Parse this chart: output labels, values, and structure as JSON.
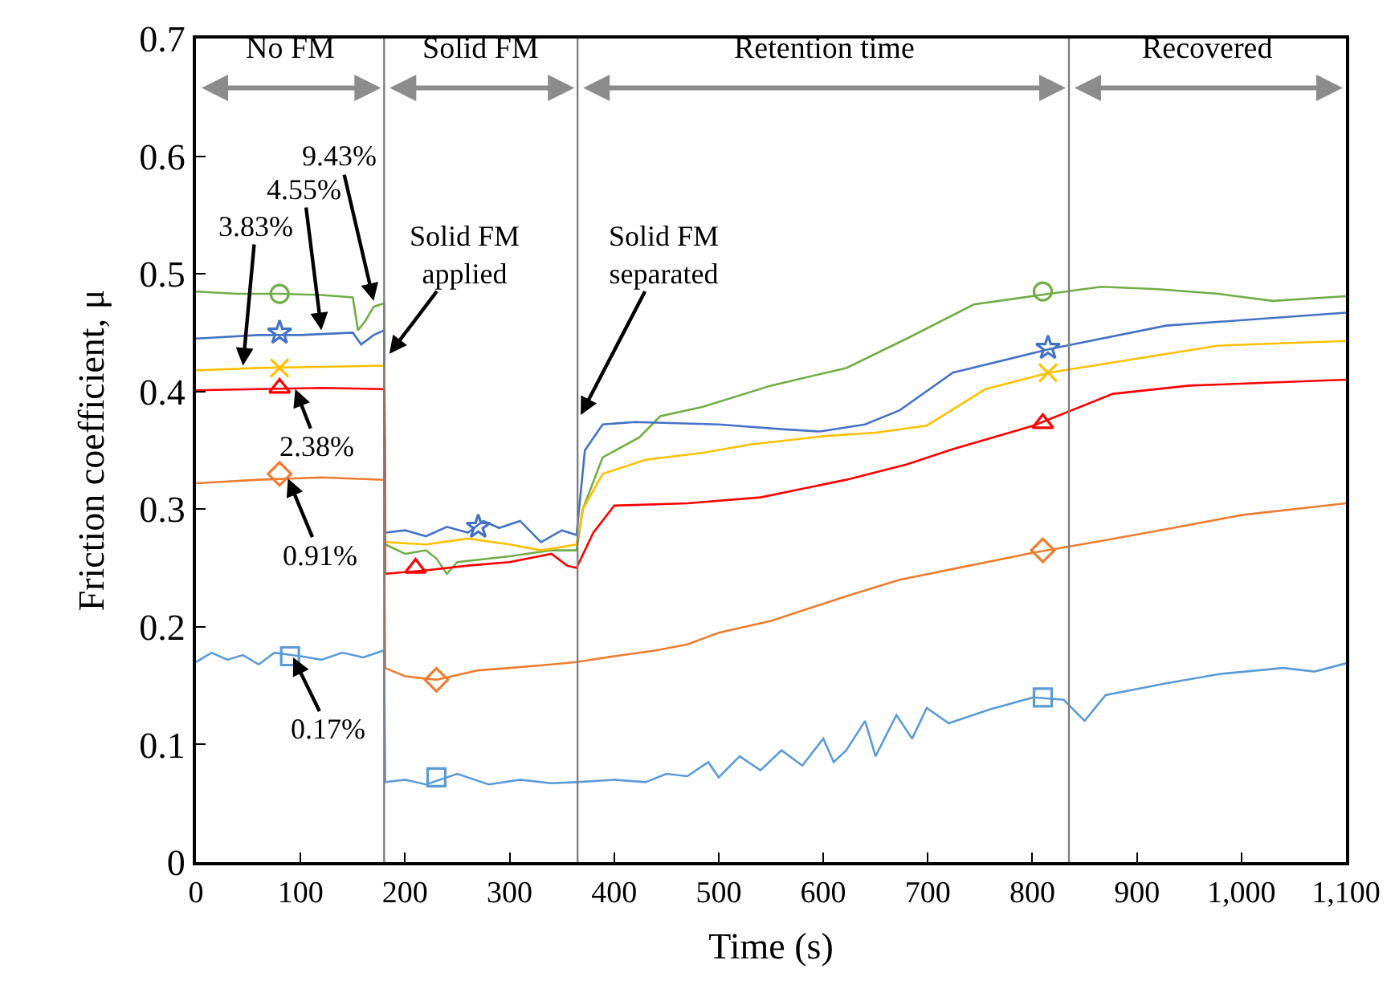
{
  "chart_data": {
    "type": "line",
    "xlabel": "Time (s)",
    "ylabel": "Friction coefficient, μ",
    "xlim": [
      0,
      1100
    ],
    "ylim": [
      0,
      0.7
    ],
    "xticks": [
      0,
      100,
      200,
      300,
      400,
      500,
      600,
      700,
      800,
      900,
      {
        "value": 1000,
        "label": "1,000"
      },
      {
        "value": 1100,
        "label": "1,100"
      }
    ],
    "yticks": [
      0,
      0.1,
      0.2,
      0.3,
      0.4,
      0.5,
      0.6,
      0.7
    ],
    "series": [
      {
        "color": "#70ad47",
        "x": [
          0,
          40,
          80,
          120,
          150,
          155,
          162,
          170,
          180,
          181,
          200,
          220,
          230,
          240,
          250,
          300,
          340,
          364,
          370,
          389,
          424,
          444,
          485,
          550,
          622,
          680,
          744,
          816,
          866,
          920,
          978,
          1030,
          1100
        ],
        "values": [
          0.485,
          0.483,
          0.483,
          0.482,
          0.48,
          0.452,
          0.46,
          0.472,
          0.475,
          0.27,
          0.262,
          0.265,
          0.258,
          0.245,
          0.255,
          0.26,
          0.265,
          0.265,
          0.3,
          0.344,
          0.361,
          0.379,
          0.387,
          0.405,
          0.42,
          0.445,
          0.474,
          0.483,
          0.489,
          0.487,
          0.483,
          0.477,
          0.481
        ]
      },
      {
        "color": "#4472c4",
        "x": [
          0,
          60,
          100,
          150,
          158,
          170,
          180,
          181,
          200,
          220,
          240,
          260,
          275,
          290,
          310,
          330,
          350,
          364,
          372,
          389,
          420,
          500,
          560,
          597,
          640,
          673,
          724,
          816,
          928,
          1100
        ],
        "values": [
          0.445,
          0.448,
          0.448,
          0.45,
          0.44,
          0.448,
          0.452,
          0.28,
          0.282,
          0.277,
          0.285,
          0.28,
          0.29,
          0.284,
          0.29,
          0.272,
          0.282,
          0.278,
          0.35,
          0.372,
          0.374,
          0.372,
          0.368,
          0.366,
          0.372,
          0.384,
          0.416,
          0.436,
          0.456,
          0.467
        ]
      },
      {
        "color": "#ffc000",
        "x": [
          0,
          60,
          120,
          180,
          181,
          220,
          260,
          300,
          330,
          364,
          370,
          389,
          430,
          485,
          530,
          600,
          650,
          699,
          755,
          816,
          900,
          978,
          1100
        ],
        "values": [
          0.418,
          0.42,
          0.421,
          0.422,
          0.272,
          0.27,
          0.275,
          0.27,
          0.265,
          0.27,
          0.3,
          0.33,
          0.342,
          0.348,
          0.355,
          0.362,
          0.365,
          0.371,
          0.402,
          0.416,
          0.428,
          0.439,
          0.443
        ]
      },
      {
        "color": "#ff0000",
        "x": [
          0,
          60,
          120,
          180,
          181,
          220,
          260,
          300,
          340,
          355,
          364,
          380,
          400,
          470,
          540,
          622,
          680,
          724,
          801,
          877,
          950,
          1100
        ],
        "values": [
          0.401,
          0.402,
          0.403,
          0.402,
          0.245,
          0.248,
          0.252,
          0.255,
          0.262,
          0.252,
          0.25,
          0.28,
          0.303,
          0.305,
          0.31,
          0.325,
          0.338,
          0.351,
          0.371,
          0.398,
          0.405,
          0.41
        ]
      },
      {
        "color": "#ed7d31",
        "x": [
          0,
          60,
          120,
          180,
          181,
          200,
          230,
          270,
          300,
          340,
          364,
          400,
          440,
          470,
          500,
          550,
          622,
          673,
          740,
          801,
          860,
          928,
          1000,
          1100
        ],
        "values": [
          0.322,
          0.325,
          0.327,
          0.325,
          0.165,
          0.158,
          0.155,
          0.163,
          0.165,
          0.168,
          0.17,
          0.175,
          0.18,
          0.185,
          0.195,
          0.205,
          0.226,
          0.24,
          0.252,
          0.263,
          0.272,
          0.283,
          0.295,
          0.305
        ]
      },
      {
        "color": "#5b9bd5",
        "x": [
          0,
          15,
          30,
          45,
          60,
          75,
          100,
          120,
          140,
          160,
          180,
          181,
          200,
          220,
          250,
          280,
          310,
          340,
          364,
          400,
          430,
          450,
          470,
          490,
          500,
          520,
          540,
          560,
          580,
          600,
          610,
          622,
          640,
          650,
          670,
          685,
          699,
          720,
          760,
          801,
          830,
          850,
          870,
          928,
          980,
          1040,
          1070,
          1100
        ],
        "values": [
          0.17,
          0.178,
          0.172,
          0.176,
          0.168,
          0.178,
          0.175,
          0.172,
          0.178,
          0.174,
          0.18,
          0.068,
          0.07,
          0.066,
          0.075,
          0.066,
          0.07,
          0.067,
          0.068,
          0.07,
          0.068,
          0.075,
          0.073,
          0.085,
          0.072,
          0.09,
          0.078,
          0.095,
          0.082,
          0.105,
          0.085,
          0.095,
          0.12,
          0.09,
          0.125,
          0.105,
          0.131,
          0.118,
          0.13,
          0.14,
          0.138,
          0.12,
          0.142,
          0.152,
          0.16,
          0.165,
          0.162,
          0.169
        ]
      },
      {
        "type": "scatter",
        "marker": "circle",
        "color": "#70ad47",
        "x": [
          80,
          810
        ],
        "values": [
          0.483,
          0.485
        ]
      },
      {
        "type": "scatter",
        "marker": "star",
        "color": "#4472c4",
        "x": [
          80,
          270,
          815
        ],
        "values": [
          0.45,
          0.285,
          0.437
        ]
      },
      {
        "type": "scatter",
        "marker": "cross",
        "color": "#ffc000",
        "x": [
          80,
          815
        ],
        "values": [
          0.42,
          0.416
        ]
      },
      {
        "type": "scatter",
        "marker": "triangle",
        "color": "#ff0000",
        "x": [
          80,
          210,
          810
        ],
        "values": [
          0.403,
          0.25,
          0.373
        ]
      },
      {
        "type": "scatter",
        "marker": "diamond",
        "color": "#ed7d31",
        "x": [
          80,
          230,
          810
        ],
        "values": [
          0.33,
          0.155,
          0.265
        ]
      },
      {
        "type": "scatter",
        "marker": "square",
        "color": "#5b9bd5",
        "x": [
          90,
          230,
          810
        ],
        "values": [
          0.175,
          0.072,
          0.14
        ]
      }
    ],
    "ref_lines": [
      {
        "axis": "x",
        "value": 180,
        "color": "#808080"
      },
      {
        "axis": "x",
        "value": 365,
        "color": "#808080"
      },
      {
        "axis": "x",
        "value": 835,
        "color": "#808080"
      }
    ],
    "annotations": [
      "No FM",
      "Solid FM",
      "Retention time",
      "Recovered",
      {
        "text": "9.43%",
        "x": 170,
        "y": 0.477
      },
      {
        "text": "4.55%",
        "x": 120,
        "y": 0.452
      },
      {
        "text": "3.83%",
        "x": 45,
        "y": 0.422
      },
      {
        "text": "2.38%",
        "x": 95,
        "y": 0.402
      },
      {
        "text": "0.91%",
        "x": 88,
        "y": 0.326
      },
      {
        "text": "0.17%",
        "x": 93,
        "y": 0.174
      },
      {
        "text": "Solid FM\napplied",
        "x": 185,
        "y": 0.432
      },
      {
        "text": "Solid FM\nseparated",
        "x": 368,
        "y": 0.38
      }
    ]
  }
}
